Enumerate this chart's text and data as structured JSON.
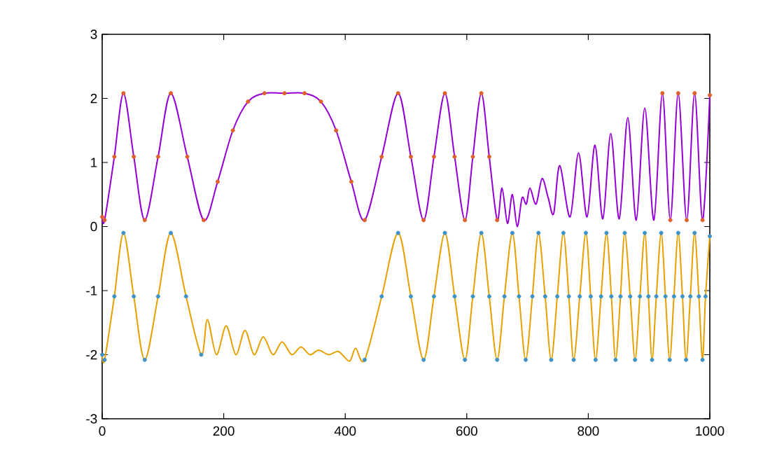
{
  "chart_data": {
    "type": "line",
    "xlim": [
      0,
      1000
    ],
    "ylim": [
      -3,
      3
    ],
    "xticks": [
      0,
      200,
      400,
      600,
      800,
      1000
    ],
    "yticks": [
      -3,
      -2,
      -1,
      0,
      1,
      2,
      3
    ],
    "grid": false,
    "series": [
      {
        "color": "#9400d3",
        "x": [
          0,
          4,
          20,
          35,
          52,
          70,
          92,
          113,
          140,
          167,
          190,
          215,
          240,
          267,
          300,
          333,
          360,
          385,
          410,
          432,
          460,
          487,
          508,
          529,
          546,
          564,
          580,
          597,
          610,
          624,
          637,
          650,
          658,
          667,
          675,
          683,
          691,
          698,
          704,
          714,
          724,
          734,
          743,
          753,
          770,
          784,
          798,
          811,
          824,
          837,
          851,
          865,
          879,
          893,
          908,
          922,
          935,
          948,
          962,
          975,
          988,
          1000
        ],
        "values": [
          0.15,
          0.1,
          1.09,
          2.08,
          1.09,
          0.1,
          1.09,
          2.08,
          1.09,
          0.1,
          0.7,
          1.5,
          1.95,
          2.08,
          2.08,
          2.08,
          1.95,
          1.5,
          0.7,
          0.1,
          1.09,
          2.08,
          1.09,
          0.1,
          1.09,
          2.08,
          1.09,
          0.1,
          1.09,
          2.08,
          1.09,
          0.1,
          0.6,
          0.05,
          0.5,
          0.0,
          0.45,
          0.35,
          0.6,
          0.35,
          0.75,
          0.45,
          0.2,
          0.95,
          0.15,
          1.15,
          0.15,
          1.27,
          0.12,
          1.45,
          0.12,
          1.7,
          0.1,
          1.85,
          0.1,
          2.08,
          0.1,
          2.08,
          0.1,
          2.08,
          0.1,
          2.05
        ]
      },
      {
        "type": "scatter",
        "marker": "circle",
        "color": "#e0602a",
        "x": [
          0,
          4,
          20,
          35,
          52,
          70,
          92,
          113,
          140,
          167,
          190,
          215,
          240,
          267,
          300,
          333,
          360,
          385,
          410,
          432,
          460,
          487,
          508,
          529,
          546,
          564,
          580,
          597,
          610,
          624,
          637,
          650,
          922,
          935,
          948,
          962,
          975,
          988,
          1000
        ],
        "values": [
          0.15,
          0.1,
          1.09,
          2.08,
          1.09,
          0.1,
          1.09,
          2.08,
          1.09,
          0.1,
          0.7,
          1.5,
          1.95,
          2.08,
          2.08,
          2.08,
          1.95,
          1.5,
          0.7,
          0.1,
          1.09,
          2.08,
          1.09,
          0.1,
          1.09,
          2.08,
          1.09,
          0.1,
          1.09,
          2.08,
          1.09,
          0.1,
          2.08,
          0.1,
          2.08,
          0.1,
          2.08,
          0.1,
          2.05
        ]
      },
      {
        "color": "#e6a000",
        "x": [
          0,
          4,
          20,
          35,
          52,
          70,
          92,
          113,
          138,
          163,
          173,
          188,
          204,
          220,
          235,
          250,
          265,
          281,
          296,
          312,
          327,
          342,
          356,
          373,
          389,
          407,
          417,
          432,
          460,
          487,
          508,
          529,
          546,
          564,
          580,
          597,
          610,
          624,
          637,
          650,
          662,
          675,
          686,
          697,
          708,
          718,
          729,
          739,
          749,
          759,
          768,
          776,
          786,
          796,
          804,
          812,
          821,
          830,
          838,
          845,
          853,
          860,
          869,
          877,
          885,
          893,
          899,
          905,
          912,
          920,
          927,
          934,
          941,
          948,
          955,
          961,
          968,
          975,
          982,
          988,
          993,
          1000
        ],
        "values": [
          -2.0,
          -2.08,
          -1.09,
          -0.1,
          -1.09,
          -2.08,
          -1.09,
          -0.1,
          -1.09,
          -2.0,
          -1.45,
          -2.0,
          -1.55,
          -2.0,
          -1.62,
          -2.0,
          -1.72,
          -2.0,
          -1.8,
          -2.0,
          -1.88,
          -2.0,
          -1.93,
          -2.0,
          -1.95,
          -2.1,
          -1.9,
          -2.08,
          -1.09,
          -0.1,
          -1.09,
          -2.08,
          -1.09,
          -0.1,
          -1.09,
          -2.08,
          -1.09,
          -0.1,
          -1.09,
          -2.08,
          -1.09,
          -0.1,
          -1.09,
          -2.08,
          -1.09,
          -0.1,
          -1.09,
          -2.08,
          -1.09,
          -0.1,
          -1.09,
          -2.08,
          -1.09,
          -0.1,
          -1.09,
          -2.08,
          -1.09,
          -0.1,
          -1.09,
          -2.08,
          -1.09,
          -0.1,
          -1.09,
          -2.08,
          -1.09,
          -0.1,
          -1.09,
          -2.08,
          -1.09,
          -0.1,
          -1.09,
          -2.08,
          -1.09,
          -0.1,
          -1.09,
          -2.08,
          -1.09,
          -0.1,
          -1.09,
          -2.08,
          -1.09,
          -0.15
        ]
      },
      {
        "type": "scatter",
        "marker": "circle",
        "color": "#3d93c8",
        "x": [
          0,
          4,
          20,
          35,
          52,
          70,
          92,
          113,
          138,
          163,
          432,
          460,
          487,
          508,
          529,
          546,
          564,
          580,
          597,
          610,
          624,
          637,
          650,
          662,
          675,
          686,
          697,
          708,
          718,
          729,
          739,
          749,
          759,
          768,
          776,
          786,
          796,
          804,
          812,
          821,
          830,
          838,
          845,
          853,
          860,
          869,
          877,
          885,
          893,
          899,
          905,
          912,
          920,
          927,
          934,
          941,
          948,
          955,
          961,
          968,
          975,
          982,
          988,
          993,
          1000
        ],
        "values": [
          -2.0,
          -2.08,
          -1.09,
          -0.1,
          -1.09,
          -2.08,
          -1.09,
          -0.1,
          -1.09,
          -2.0,
          -2.08,
          -1.09,
          -0.1,
          -1.09,
          -2.08,
          -1.09,
          -0.1,
          -1.09,
          -2.08,
          -1.09,
          -0.1,
          -1.09,
          -2.08,
          -1.09,
          -0.1,
          -1.09,
          -2.08,
          -1.09,
          -0.1,
          -1.09,
          -2.08,
          -1.09,
          -0.1,
          -1.09,
          -2.08,
          -1.09,
          -0.1,
          -1.09,
          -2.08,
          -1.09,
          -0.1,
          -1.09,
          -2.08,
          -1.09,
          -0.1,
          -1.09,
          -2.08,
          -1.09,
          -0.1,
          -1.09,
          -2.08,
          -1.09,
          -0.1,
          -1.09,
          -2.08,
          -1.09,
          -0.1,
          -1.09,
          -2.08,
          -1.09,
          -0.1,
          -1.09,
          -2.08,
          -1.09,
          -0.15
        ]
      }
    ]
  }
}
